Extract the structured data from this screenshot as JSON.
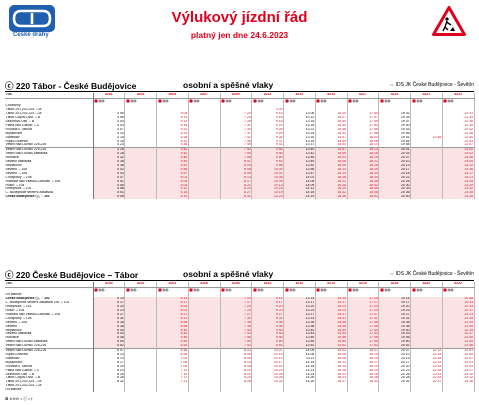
{
  "header": {
    "logo_text": "České dráhy",
    "title": "Výlukový jízdní řád",
    "subtitle": "platný jen dne  24.6.2023",
    "warning_icon": "roadworks-sign-icon"
  },
  "sections": [
    {
      "route": "ⓒ 220 Tábor - České Budějovice",
      "kind": "osobní a spěšné vlaky",
      "ids": "⇔ IDS JK České Budějovice - Ševětín",
      "head_label": "Vlak",
      "trains": [
        "8201",
        "8203",
        "8205",
        "8207",
        "8209",
        "8211",
        "8213",
        "8215",
        "8217",
        "8219",
        "8221",
        "8223"
      ],
      "rows": [
        {
          "st": "Chotoviny",
          "t": []
        },
        {
          "st": "Tábor 201,202,224 ⇔IA",
          "t": [
            "",
            "",
            "",
            "",
            "",
            "3 00",
            "",
            "",
            "",
            "",
            "",
            ""
          ]
        },
        {
          "st": "Tábor 201,202,224 ⇔IA",
          "t": [
            "3 55",
            "",
            "5 09",
            "",
            "7 20",
            "9 14",
            "13 06",
            "15 20",
            "17 44",
            "19 32",
            "",
            "22 31"
          ]
        },
        {
          "st": "Tábor-Čápův Dvůr ⇔B",
          "t": [
            "3 58",
            "",
            "5 11",
            "",
            "7 25",
            "9 16",
            "13 12",
            "15 27",
            "17 47",
            "19 35",
            "",
            "22 34"
          ]
        },
        {
          "st": "Sezimovo Ústí ⇔B",
          "t": [
            "4 00",
            "",
            "5 13",
            "",
            "7 28",
            "9 18",
            "13 15",
            "15 30",
            "17 49",
            "19 37",
            "",
            "22 36"
          ]
        },
        {
          "st": "Planá nad Lužnicí ⇔C",
          "t": [
            "4 03",
            "",
            "5 16",
            "",
            "7 31",
            "9 22",
            "13 18",
            "15 34",
            "17 52",
            "19 40",
            "",
            "22 39"
          ]
        },
        {
          "st": "Roudná u Tábora",
          "t": [
            "4 07",
            "",
            "5 20",
            "",
            "7 34",
            "9 26",
            "13 22",
            "15 38",
            "17 55",
            "19 43",
            "",
            "22 42"
          ]
        },
        {
          "st": "Myslkovice",
          "t": [
            "4 10",
            "",
            "5 23",
            "",
            "7 37",
            "9 29",
            "13 25",
            "15 42",
            "17 58",
            "19 46",
            "",
            "22 45"
          ]
        },
        {
          "st": "Soběslav",
          "t": [
            "4 15",
            "",
            "5 28",
            "",
            "7 42",
            "9 34",
            "13 30",
            "15 47",
            "18 03",
            "19 51",
            "22 55",
            "22 50"
          ]
        },
        {
          "st": "Řípec-Dráchov",
          "t": [
            "4 18",
            "",
            "5 31",
            "",
            "7 45",
            "9 37",
            "13 33",
            "15 50",
            "18 06",
            "19 54",
            "",
            "22 53"
          ]
        },
        {
          "st": "Veselí nad Lužnicí 225,226",
          "t": [
            "4 23",
            "",
            "5 36",
            "",
            "7 49",
            "9 41",
            "13 37",
            "15 54",
            "18 10",
            "19 58",
            "",
            "22 57"
          ]
        },
        {
          "st": "Veselí nad Lužnicí 225,226",
          "t": [
            "4 26",
            "",
            "5 40",
            "",
            "7 52",
            "9 44",
            "13 40",
            "15 57",
            "18 13",
            "20 01",
            "",
            "23 00"
          ],
          "sep": true
        },
        {
          "st": "Veselí nad Lužnicí zastávka",
          "t": [
            "4 28",
            "",
            "5 42",
            "",
            "7 54",
            "9 46",
            "13 42",
            "15 59",
            "18 15",
            "20 03",
            "",
            "23 02"
          ]
        },
        {
          "st": "Horusice",
          "t": [
            "4 32",
            "",
            "5 46",
            "",
            "7 58",
            "9 50",
            "13 46",
            "16 03",
            "18 19",
            "20 07",
            "",
            "23 06"
          ]
        },
        {
          "st": "Ševětín zastávka",
          "t": [
            "4 35",
            "",
            "5 49",
            "",
            "8 01",
            "9 53",
            "13 49",
            "16 06",
            "18 22",
            "20 10",
            "",
            "23 09"
          ]
        },
        {
          "st": "Neplachov",
          "t": [
            "4 38",
            "",
            "5 52",
            "",
            "8 04",
            "9 56",
            "13 52",
            "16 09",
            "18 25",
            "20 13",
            "",
            "23 12"
          ]
        },
        {
          "st": "Ševětín ⇔108",
          "t": [
            "4 42",
            "",
            "5 56",
            "",
            "8 08",
            "10 00",
            "13 56",
            "16 13",
            "18 29",
            "20 17",
            "",
            "23 16"
          ]
        },
        {
          "st": "Ševětín ⇔108",
          "t": [
            "4 43",
            "",
            "5 57",
            "",
            "8 09",
            "10 01",
            "13 57",
            "16 14",
            "18 30",
            "20 18",
            "",
            "23 17"
          ]
        },
        {
          "st": "Chotýčany ⇔108",
          "t": [
            "4 47",
            "",
            "6 01",
            "",
            "8 13",
            "10 05",
            "14 01",
            "16 18",
            "18 34",
            "20 22",
            "",
            "23 21"
          ]
        },
        {
          "st": "Hluboká nad Vltavou-Zámostí ⇔106",
          "t": [
            "4 51",
            "",
            "6 05",
            "",
            "8 17",
            "10 09",
            "14 05",
            "16 22",
            "18 38",
            "20 26",
            "",
            "23 25"
          ]
        },
        {
          "st": "Hosín ⇔104",
          "t": [
            "4 55",
            "",
            "6 09",
            "",
            "8 21",
            "10 13",
            "14 09",
            "16 26",
            "18 42",
            "20 30",
            "",
            "23 29"
          ]
        },
        {
          "st": "Hrdějovice ⇔101",
          "t": [
            "4 58",
            "",
            "6 12",
            "",
            "8 24",
            "10 16",
            "14 12",
            "16 29",
            "18 45",
            "20 33",
            "",
            "23 32"
          ]
        },
        {
          "st": "Č. Budějovice severní zastávka",
          "t": [
            "5 01",
            "",
            "6 15",
            "",
            "8 27",
            "10 19",
            "14 15",
            "16 32",
            "18 48",
            "20 36",
            "",
            "23 35"
          ]
        },
        {
          "st": "České Budějovice ⓒ, ⇔101",
          "t": [
            "5 05",
            "",
            "6 19",
            "",
            "8 31",
            "10 23",
            "14 19",
            "16 36",
            "18 52",
            "20 40",
            "",
            "23 39"
          ],
          "bold": true
        }
      ]
    },
    {
      "route": "ⓒ 220 České Budějovice – Tábor",
      "kind": "osobní a spěšné vlaky",
      "ids": "⇔ IDS JK České Budějovice - Ševětín",
      "head_label": "Vlak",
      "trains": [
        "8200",
        "8202",
        "8204",
        "8206",
        "8208",
        "8210",
        "8212",
        "8214",
        "8216",
        "8218",
        "8220",
        "8222"
      ],
      "rows": [
        {
          "st": "Do stanice",
          "t": []
        },
        {
          "st": "České Budějovice ⓒ, ⇔101",
          "t": [
            "5 14",
            "",
            "6 14",
            "",
            "7 14",
            "9 14",
            "13 14",
            "15 14",
            "17 14",
            "19 14",
            "",
            "22 08"
          ],
          "bold": true
        },
        {
          "st": "Č. Budějovice severní zastávka 190 ⇔101",
          "t": [
            "5 17",
            "",
            "6 17",
            "",
            "7 17",
            "9 17",
            "13 17",
            "15 17",
            "17 17",
            "19 17",
            "",
            "22 11"
          ]
        },
        {
          "st": "Hrdějovice ⇔101",
          "t": [
            "5 20",
            "",
            "6 20",
            "",
            "7 20",
            "9 20",
            "13 20",
            "15 20",
            "17 20",
            "19 20",
            "",
            "22 14"
          ]
        },
        {
          "st": "Hosín ⇔104",
          "t": [
            "5 23",
            "",
            "6 23",
            "",
            "7 23",
            "9 23",
            "13 23",
            "15 23",
            "17 23",
            "19 23",
            "",
            "22 17"
          ]
        },
        {
          "st": "Hluboká nad Vltavou-Zámostí ⇔106",
          "t": [
            "5 27",
            "",
            "6 27",
            "",
            "7 27",
            "9 27",
            "13 27",
            "15 27",
            "17 27",
            "19 27",
            "",
            "22 21"
          ]
        },
        {
          "st": "Chotýčany ⇔108",
          "t": [
            "5 31",
            "",
            "6 31",
            "",
            "7 31",
            "9 31",
            "13 31",
            "15 31",
            "17 31",
            "19 31",
            "",
            "22 25"
          ]
        },
        {
          "st": "Ševětín ⇔108",
          "t": [
            "5 35",
            "",
            "6 35",
            "",
            "7 35",
            "9 35",
            "13 35",
            "15 35",
            "17 35",
            "19 35",
            "",
            "22 29"
          ]
        },
        {
          "st": "Ševětín",
          "t": [
            "5 36",
            "",
            "6 36",
            "",
            "7 36",
            "9 36",
            "13 36",
            "15 36",
            "17 36",
            "19 36",
            "",
            "22 30"
          ]
        },
        {
          "st": "Neplachov",
          "t": [
            "5 40",
            "",
            "6 40",
            "",
            "7 40",
            "9 40",
            "13 40",
            "15 40",
            "17 40",
            "19 40",
            "",
            "22 34"
          ]
        },
        {
          "st": "Ševětín zastávka",
          "t": [
            "5 43",
            "",
            "6 43",
            "",
            "7 43",
            "9 43",
            "13 43",
            "15 43",
            "17 43",
            "19 43",
            "",
            "22 37"
          ]
        },
        {
          "st": "Horusice",
          "t": [
            "5 46",
            "",
            "6 46",
            "",
            "7 46",
            "9 46",
            "13 46",
            "15 46",
            "17 46",
            "19 46",
            "",
            "22 40"
          ]
        },
        {
          "st": "Veselí nad Lužnicí zastávka",
          "t": [
            "5 50",
            "",
            "6 50",
            "",
            "7 50",
            "9 50",
            "13 50",
            "15 50",
            "17 50",
            "19 50",
            "",
            "22 44"
          ]
        },
        {
          "st": "Veselí nad Lužnicí 225,226",
          "t": [
            "5 52",
            "",
            "6 52",
            "",
            "7 52",
            "9 52",
            "13 52",
            "15 52",
            "17 52",
            "19 52",
            "",
            "22 46"
          ]
        },
        {
          "st": "Veselí nad Lužnicí 225,226",
          "t": [
            "6 07",
            "",
            "6 56",
            "",
            "8 03",
            "10 07",
            "14 05",
            "16 02",
            "18 07",
            "20 07",
            "22 12",
            "22 51"
          ],
          "sep": true
        },
        {
          "st": "Řípec-Dráchov",
          "t": [
            "6 10",
            "",
            "6 59",
            "",
            "8 06",
            "10 10",
            "14 08",
            "16 05",
            "18 10",
            "20 10",
            "22 15",
            "22 54"
          ]
        },
        {
          "st": "Soběslav",
          "t": [
            "6 13",
            "",
            "7 02",
            "",
            "8 09",
            "10 13",
            "14 11",
            "16 08",
            "18 13",
            "20 13",
            "22 18",
            "22 57"
          ]
        },
        {
          "st": "Myslkovice",
          "t": [
            "6 17",
            "",
            "7 06",
            "",
            "8 13",
            "10 17",
            "14 15",
            "16 12",
            "18 17",
            "20 17",
            "22 22",
            "23 01"
          ]
        },
        {
          "st": "Roudná u Tábora",
          "t": [
            "6 20",
            "",
            "7 09",
            "",
            "8 16",
            "10 20",
            "14 18",
            "16 15",
            "18 20",
            "20 20",
            "22 25",
            "23 04"
          ]
        },
        {
          "st": "Planá nad Lužnicí ⇔C",
          "t": [
            "6 23",
            "",
            "7 12",
            "",
            "8 19",
            "10 23",
            "14 21",
            "16 18",
            "18 23",
            "20 23",
            "22 28",
            "23 07"
          ]
        },
        {
          "st": "Sezimovo Ústí ⇔B",
          "t": [
            "6 26",
            "",
            "7 15",
            "",
            "8 22",
            "10 26",
            "14 24",
            "16 21",
            "18 26",
            "20 26",
            "22 31",
            "23 10"
          ]
        },
        {
          "st": "Tábor-Čápův Dvůr ⇔B",
          "t": [
            "6 28",
            "",
            "7 17",
            "",
            "8 24",
            "10 28",
            "14 26",
            "16 23",
            "18 28",
            "20 28",
            "22 33",
            "23 12"
          ]
        },
        {
          "st": "Tábor 201,202,224 ⇔IA",
          "t": [
            "6 32",
            "",
            "7 21",
            "",
            "8 28",
            "10 32",
            "14 30",
            "16 27",
            "18 32",
            "20 32",
            "22 37",
            "23 16"
          ]
        },
        {
          "st": "Tábor 201,202,224 ⇔IA",
          "t": [
            "",
            "",
            "",
            "",
            "",
            "",
            "",
            "",
            "",
            "",
            "",
            ""
          ]
        },
        {
          "st": "Do stanice",
          "t": []
        }
      ]
    }
  ],
  "footer": "⊠  ⊳⊳⊳ • ⓒ • †"
}
